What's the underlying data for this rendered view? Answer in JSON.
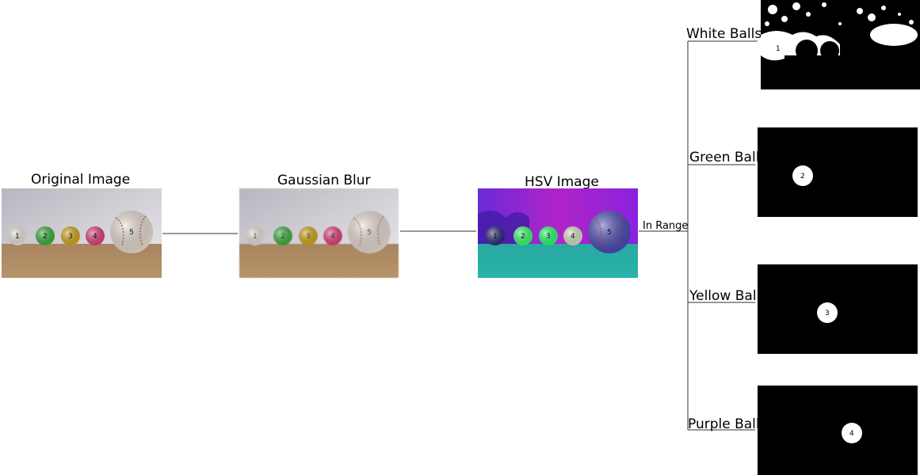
{
  "stages": {
    "original": {
      "title": "Original Image"
    },
    "blur": {
      "title": "Gaussian Blur"
    },
    "hsv": {
      "title": "HSV Image"
    }
  },
  "edge_label": "In Range",
  "masks": {
    "white": {
      "title": "White Balls"
    },
    "green": {
      "title": "Green Ball"
    },
    "yellow": {
      "title": "Yellow Ball"
    },
    "purple": {
      "title": "Purple Ball"
    }
  },
  "balls": [
    {
      "number": "1",
      "color": "#e8e4dc",
      "hsv_color": "#2a2a7a"
    },
    {
      "number": "2",
      "color": "#3cb03c",
      "hsv_color": "#3aff6a"
    },
    {
      "number": "3",
      "color": "#d4a518",
      "hsv_color": "#24ff6e"
    },
    {
      "number": "4",
      "color": "#e0407a",
      "hsv_color": "#d8e0c8"
    },
    {
      "number": "5",
      "color": "#e6ddd2",
      "hsv_color": "#4a4ab4"
    }
  ],
  "mask_labels": {
    "white": "1",
    "green": "2",
    "yellow": "3",
    "purple": "4"
  }
}
